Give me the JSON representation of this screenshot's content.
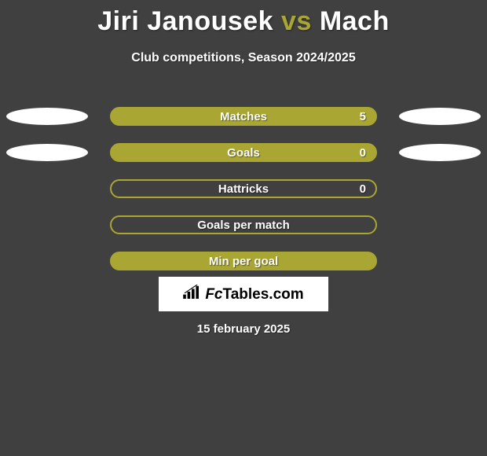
{
  "title": {
    "player1": "Jiri Janousek",
    "vs": "vs",
    "player2": "Mach"
  },
  "subtitle": "Club competitions, Season 2024/2025",
  "colors": {
    "player1": "#ffffff",
    "player2": "#ffffff",
    "accent": "#a9a633",
    "bar_border": "#a9a633",
    "bar_fill_default": "#a9a633",
    "bar_label_text": "#ffffff",
    "page_bg": "#404040",
    "brand_bg": "#ffffff",
    "brand_text": "#000000"
  },
  "stat_rows": [
    {
      "key": "matches",
      "label": "Matches",
      "left_oval_color": "#ffffff",
      "right_oval_color": "#ffffff",
      "bar_fill_color": "#a9a633",
      "bar_border_color": "#a9a633",
      "value_left": "",
      "value_right": "5",
      "show_ovals": true
    },
    {
      "key": "goals",
      "label": "Goals",
      "left_oval_color": "#ffffff",
      "right_oval_color": "#ffffff",
      "bar_fill_color": "#a9a633",
      "bar_border_color": "#a9a633",
      "value_left": "",
      "value_right": "0",
      "show_ovals": true
    },
    {
      "key": "hattricks",
      "label": "Hattricks",
      "left_oval_color": "",
      "right_oval_color": "",
      "bar_fill_color": "transparent",
      "bar_border_color": "#a9a633",
      "value_left": "",
      "value_right": "0",
      "show_ovals": false
    },
    {
      "key": "goals-per-match",
      "label": "Goals per match",
      "left_oval_color": "",
      "right_oval_color": "",
      "bar_fill_color": "transparent",
      "bar_border_color": "#a9a633",
      "value_left": "",
      "value_right": "",
      "show_ovals": false
    },
    {
      "key": "min-per-goal",
      "label": "Min per goal",
      "left_oval_color": "",
      "right_oval_color": "",
      "bar_fill_color": "#a9a633",
      "bar_border_color": "#a9a633",
      "value_left": "",
      "value_right": "",
      "show_ovals": false
    }
  ],
  "brand": {
    "text": "FcTables.com"
  },
  "date": "15 february 2025"
}
